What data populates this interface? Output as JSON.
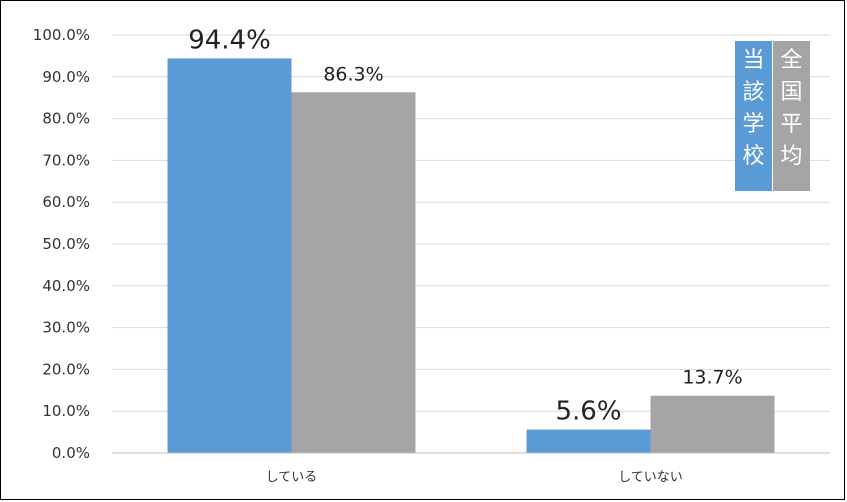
{
  "chart_data": {
    "type": "bar",
    "categories": [
      "している",
      "していない"
    ],
    "series": [
      {
        "name": "当該学校",
        "values": [
          94.4,
          5.6
        ],
        "labels": [
          "94.4%",
          "5.6%"
        ],
        "color": "#5b9bd5"
      },
      {
        "name": "全国平均",
        "values": [
          86.3,
          13.7
        ],
        "labels": [
          "86.3%",
          "13.7%"
        ],
        "color": "#a5a5a5"
      }
    ],
    "yticks": [
      "0.0%",
      "10.0%",
      "20.0%",
      "30.0%",
      "40.0%",
      "50.0%",
      "60.0%",
      "70.0%",
      "80.0%",
      "90.0%",
      "100.0%"
    ],
    "ylim": [
      0,
      100
    ],
    "grid": true,
    "legend": {
      "position": "top-right",
      "orientation": "vertical"
    }
  }
}
